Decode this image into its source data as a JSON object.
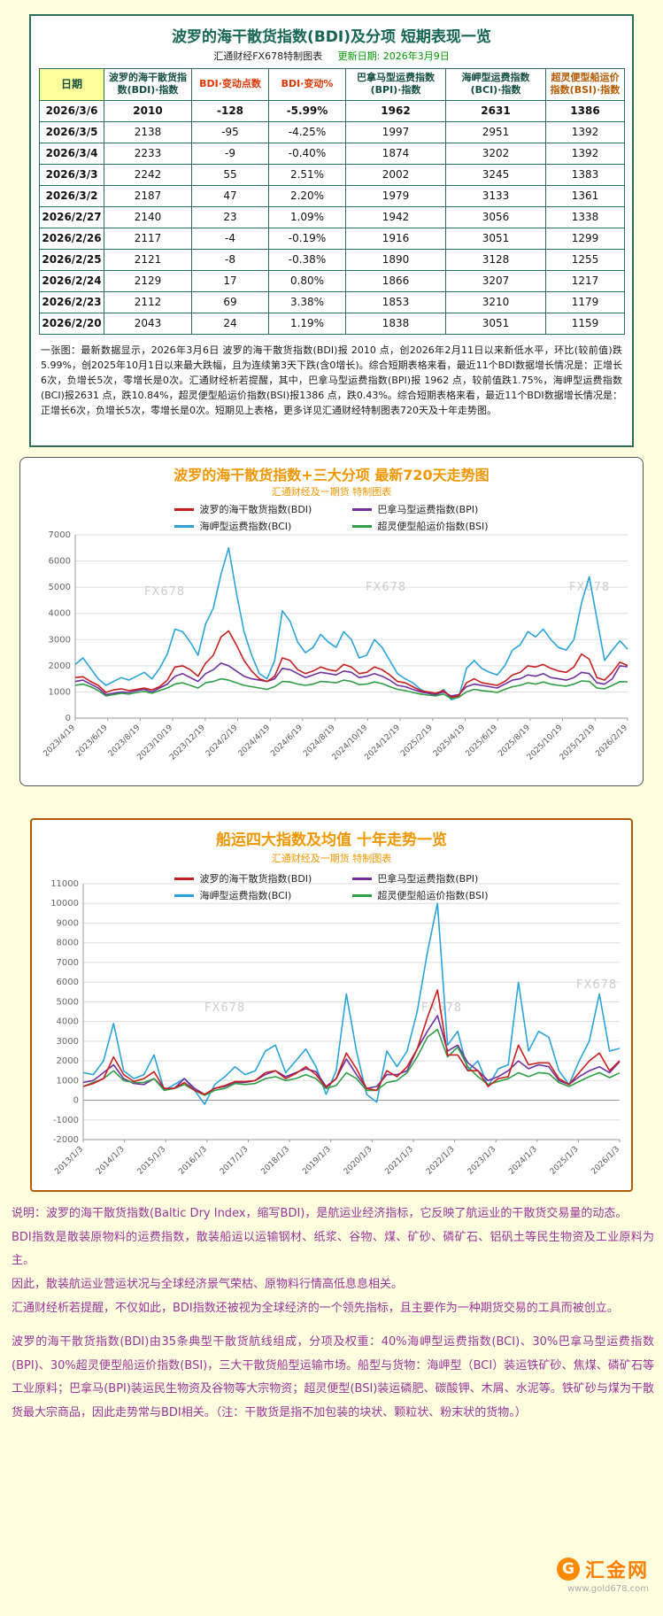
{
  "page": {
    "background": "#FFFFE0"
  },
  "report": {
    "title": "波罗的海干散货指数(BDI)及分项  短期表现一览",
    "source_label": "汇通财经FX678特制图表",
    "update_label": "更新日期: 2026年3月9日",
    "table": {
      "headers": [
        "日期",
        "波罗的海干散货指数(BDI)·指数",
        "BDI·变动点数",
        "BDI·变动%",
        "巴拿马型运费指数(BPI)·指数",
        "海岬型运费指数(BCI)·指数",
        "超灵便型船运价指数(BSI)·指数"
      ],
      "rows": [
        [
          "2026/3/6",
          "2010",
          "-128",
          "-5.99%",
          "1962",
          "2631",
          "1386"
        ],
        [
          "2026/3/5",
          "2138",
          "-95",
          "-4.25%",
          "1997",
          "2951",
          "1392"
        ],
        [
          "2026/3/4",
          "2233",
          "-9",
          "-0.40%",
          "1874",
          "3202",
          "1392"
        ],
        [
          "2026/3/3",
          "2242",
          "55",
          "2.51%",
          "2002",
          "3245",
          "1383"
        ],
        [
          "2026/3/2",
          "2187",
          "47",
          "2.20%",
          "1979",
          "3133",
          "1361"
        ],
        [
          "2026/2/27",
          "2140",
          "23",
          "1.09%",
          "1942",
          "3056",
          "1338"
        ],
        [
          "2026/2/26",
          "2117",
          "-4",
          "-0.19%",
          "1916",
          "3051",
          "1299"
        ],
        [
          "2026/2/25",
          "2121",
          "-8",
          "-0.38%",
          "1890",
          "3128",
          "1255"
        ],
        [
          "2026/2/24",
          "2129",
          "17",
          "0.80%",
          "1866",
          "3207",
          "1217"
        ],
        [
          "2026/2/23",
          "2112",
          "69",
          "3.38%",
          "1853",
          "3210",
          "1179"
        ],
        [
          "2026/2/20",
          "2043",
          "24",
          "1.19%",
          "1838",
          "3051",
          "1159"
        ]
      ]
    },
    "note": "一张图：最新数据显示，2026年3月6日 波罗的海干散货指数(BDI)报 2010 点，创2026年2月11日以来新低水平，环比(较前值)跌5.99%，创2025年10月1日以来最大跌幅，且为连续第3天下跌(含0增长)。综合短期表格来看，最近11个BDI数据增长情况是：正增长6次，负增长5次，零增长是0次。汇通财经析若提醒，其中，巴拿马型运费指数(BPI)报 1962 点，较前值跌1.75%，海岬型运费指数(BCI)报2631 点，跌10.84%，超灵便型船运价指数(BSI)报1386 点，跌0.43%。综合短期表格来看，最近11个BDI数据增长情况是：正增长6次，负增长5次，零增长是0次。短期见上表格，更多详见汇通财经特制图表720天及十年走势图。"
  },
  "chart_data": [
    {
      "type": "line",
      "title": "波罗的海干散货指数+三大分项  最新720天走势图",
      "subtitle": "汇通财经及一期货 特制图表",
      "watermark": "FX678",
      "grid": "horizontal",
      "legend_position": "top",
      "ylim": [
        0,
        7000
      ],
      "ystep": 1000,
      "xlabel": "",
      "ylabel": "",
      "x_tick_labels": [
        "2023/4/19",
        "2023/6/19",
        "2023/8/19",
        "2023/10/19",
        "2023/12/19",
        "2024/2/19",
        "2024/4/19",
        "2024/6/19",
        "2024/8/19",
        "2024/10/19",
        "2024/12/19",
        "2025/2/19",
        "2025/4/19",
        "2025/6/19",
        "2025/8/19",
        "2025/10/19",
        "2025/12/19",
        "2026/2/19"
      ],
      "series": [
        {
          "key": "bdi",
          "name": "波罗的海干散货指数(BDI)",
          "color": "#C81E1E",
          "values": [
            1550,
            1580,
            1400,
            1250,
            980,
            1080,
            1120,
            1050,
            1100,
            1150,
            1080,
            1200,
            1450,
            1950,
            2000,
            1850,
            1600,
            2100,
            2400,
            3100,
            3330,
            2800,
            2200,
            1800,
            1500,
            1400,
            1600,
            2300,
            2200,
            1850,
            1700,
            1800,
            1950,
            1850,
            1800,
            2050,
            1950,
            1700,
            1750,
            1950,
            1850,
            1650,
            1400,
            1350,
            1200,
            1050,
            1000,
            950,
            1050,
            800,
            850,
            1350,
            1500,
            1350,
            1300,
            1250,
            1400,
            1650,
            1750,
            2000,
            1950,
            2050,
            1900,
            1800,
            1750,
            1950,
            2450,
            2250,
            1550,
            1450,
            1750,
            2138,
            2010
          ]
        },
        {
          "key": "bpi",
          "name": "巴拿马型运费指数(BPI)",
          "color": "#7030A0",
          "values": [
            1400,
            1450,
            1300,
            1150,
            900,
            950,
            1000,
            980,
            1050,
            1100,
            1000,
            1150,
            1300,
            1600,
            1700,
            1550,
            1400,
            1700,
            1850,
            2100,
            2000,
            1800,
            1600,
            1500,
            1450,
            1400,
            1500,
            1900,
            1850,
            1700,
            1550,
            1650,
            1750,
            1700,
            1650,
            1800,
            1750,
            1550,
            1600,
            1700,
            1600,
            1450,
            1250,
            1200,
            1100,
            1000,
            950,
            900,
            1000,
            850,
            900,
            1200,
            1300,
            1250,
            1200,
            1150,
            1300,
            1450,
            1500,
            1650,
            1600,
            1700,
            1550,
            1500,
            1450,
            1550,
            1750,
            1700,
            1350,
            1300,
            1500,
            1997,
            1962
          ]
        },
        {
          "key": "bci",
          "name": "海岬型运费指数(BCI)",
          "color": "#2BA3DC",
          "values": [
            2050,
            2300,
            1900,
            1500,
            1250,
            1400,
            1550,
            1450,
            1600,
            1750,
            1500,
            1900,
            2450,
            3400,
            3300,
            2900,
            2400,
            3600,
            4200,
            5500,
            6500,
            4800,
            3300,
            2400,
            1700,
            1500,
            2200,
            4100,
            3700,
            2900,
            2500,
            2700,
            3200,
            2900,
            2700,
            3300,
            3000,
            2300,
            2400,
            3000,
            2700,
            2200,
            1700,
            1500,
            1350,
            1100,
            950,
            850,
            1100,
            700,
            800,
            1900,
            2200,
            1900,
            1750,
            1650,
            2000,
            2600,
            2800,
            3300,
            3100,
            3400,
            3000,
            2700,
            2600,
            3000,
            4400,
            5400,
            3800,
            2200,
            2600,
            2951,
            2631
          ]
        },
        {
          "key": "bsi",
          "name": "超灵便型船运价指数(BSI)",
          "color": "#2F9E44",
          "values": [
            1250,
            1300,
            1200,
            1050,
            850,
            900,
            950,
            920,
            980,
            1020,
            950,
            1050,
            1150,
            1300,
            1350,
            1250,
            1150,
            1350,
            1400,
            1500,
            1450,
            1350,
            1250,
            1200,
            1150,
            1100,
            1200,
            1400,
            1380,
            1300,
            1250,
            1300,
            1400,
            1380,
            1350,
            1450,
            1400,
            1280,
            1300,
            1380,
            1320,
            1200,
            1100,
            1050,
            980,
            920,
            880,
            850,
            920,
            750,
            800,
            1000,
            1100,
            1050,
            1020,
            980,
            1100,
            1200,
            1250,
            1350,
            1300,
            1380,
            1300,
            1250,
            1220,
            1300,
            1420,
            1400,
            1150,
            1120,
            1250,
            1392,
            1386
          ]
        }
      ]
    },
    {
      "type": "line",
      "title": "船运四大指数及均值 十年走势一览",
      "subtitle": "汇通财经及一期货 特制图表",
      "watermark": "FX678",
      "grid": "horizontal",
      "legend_position": "top",
      "ylim": [
        -2000,
        11000
      ],
      "ystep": 1000,
      "xlabel": "",
      "ylabel": "",
      "x_tick_labels": [
        "2013/1/3",
        "2014/1/3",
        "2015/1/3",
        "2016/1/3",
        "2017/1/3",
        "2018/1/3",
        "2019/1/3",
        "2020/1/3",
        "2021/1/3",
        "2022/1/3",
        "2023/1/3",
        "2024/1/3",
        "2025/1/3",
        "2026/1/3"
      ],
      "series": [
        {
          "key": "bdi",
          "name": "波罗的海干散货指数(BDI)",
          "color": "#C81E1E",
          "values": [
            700,
            850,
            1100,
            2200,
            1300,
            950,
            1100,
            1450,
            600,
            600,
            900,
            500,
            300,
            600,
            750,
            950,
            950,
            1000,
            1400,
            1500,
            1100,
            1350,
            1700,
            1300,
            650,
            1100,
            2400,
            1600,
            600,
            500,
            1500,
            1200,
            1700,
            2600,
            4200,
            5600,
            2300,
            2300,
            1500,
            1500,
            700,
            1100,
            1200,
            2800,
            1800,
            1900,
            1900,
            1100,
            800,
            1400,
            2000,
            2400,
            1500,
            2010
          ]
        },
        {
          "key": "bpi",
          "name": "巴拿马型运费指数(BPI)",
          "color": "#7030A0",
          "values": [
            900,
            1000,
            1400,
            1800,
            1100,
            850,
            800,
            1100,
            600,
            600,
            1100,
            600,
            300,
            600,
            700,
            900,
            900,
            1000,
            1300,
            1500,
            1200,
            1400,
            1600,
            1450,
            700,
            1100,
            2100,
            1300,
            600,
            700,
            1300,
            1300,
            1500,
            2600,
            3500,
            4300,
            2500,
            2800,
            1900,
            1500,
            1000,
            1200,
            1500,
            2000,
            1600,
            1800,
            1700,
            1000,
            800,
            1200,
            1500,
            1700,
            1400,
            1962
          ]
        },
        {
          "key": "bci",
          "name": "海岬型运费指数(BCI)",
          "color": "#2BA3DC",
          "values": [
            1400,
            1300,
            2000,
            3900,
            1500,
            1100,
            1300,
            2300,
            500,
            800,
            1100,
            500,
            -200,
            800,
            1200,
            1700,
            1300,
            1500,
            2500,
            2800,
            1400,
            2000,
            2600,
            1700,
            300,
            1500,
            5400,
            2500,
            300,
            -100,
            2500,
            1700,
            2500,
            4500,
            7500,
            10000,
            2800,
            3500,
            1500,
            2000,
            700,
            1600,
            1800,
            6000,
            2500,
            3500,
            3200,
            1500,
            800,
            2000,
            3000,
            5400,
            2500,
            2631
          ]
        },
        {
          "key": "bsi",
          "name": "超灵便型船运价指数(BSI)",
          "color": "#2F9E44",
          "values": [
            700,
            900,
            1100,
            1500,
            1000,
            900,
            900,
            1100,
            500,
            600,
            800,
            500,
            250,
            500,
            600,
            850,
            800,
            850,
            1100,
            1200,
            1000,
            1100,
            1300,
            1100,
            600,
            750,
            1400,
            1100,
            500,
            500,
            900,
            1000,
            1400,
            2200,
            3200,
            3600,
            2200,
            2700,
            1700,
            1200,
            800,
            950,
            1100,
            1400,
            1200,
            1400,
            1350,
            900,
            700,
            950,
            1200,
            1400,
            1150,
            1386
          ]
        }
      ]
    }
  ],
  "footer": {
    "paragraphs": [
      "说明：波罗的海干散货指数(Baltic Dry Index，缩写BDI)，是航运业经济指标，它反映了航运业的干散货交易量的动态。",
      "BDI指数是散装原物料的运费指数，散装船运以运输钢材、纸浆、谷物、煤、矿砂、磷矿石、铝矾土等民生物资及工业原料为主。",
      "因此，散装航运业营运状况与全球经济景气荣枯、原物料行情高低息息相关。",
      "汇通财经析若提醒，不仅如此，BDI指数还被视为全球经济的一个领先指标，且主要作为一种期货交易的工具而被创立。",
      "波罗的海干散货指数(BDI)由35条典型干散货航线组成，分项及权重：40%海岬型运费指数(BCI)、30%巴拿马型运费指数(BPI)、30%超灵便型船运价指数(BSI)，三大干散货船型运输市场。船型与货物：海岬型（BCI）装运铁矿砂、焦煤、磷矿石等工业原料；巴拿马(BPI)装运民生物资及谷物等大宗物资；超灵便型(BSI)装运磷肥、碳酸钾、木屑、水泥等。铁矿砂与煤为干散货最大宗商品，因此走势常与BDI相关。（注：干散货是指不加包装的块状、颗粒状、粉末状的货物。）"
    ],
    "logo_initial": "G",
    "logo_text": "汇金网",
    "logo_url": "www.gold678.com"
  }
}
